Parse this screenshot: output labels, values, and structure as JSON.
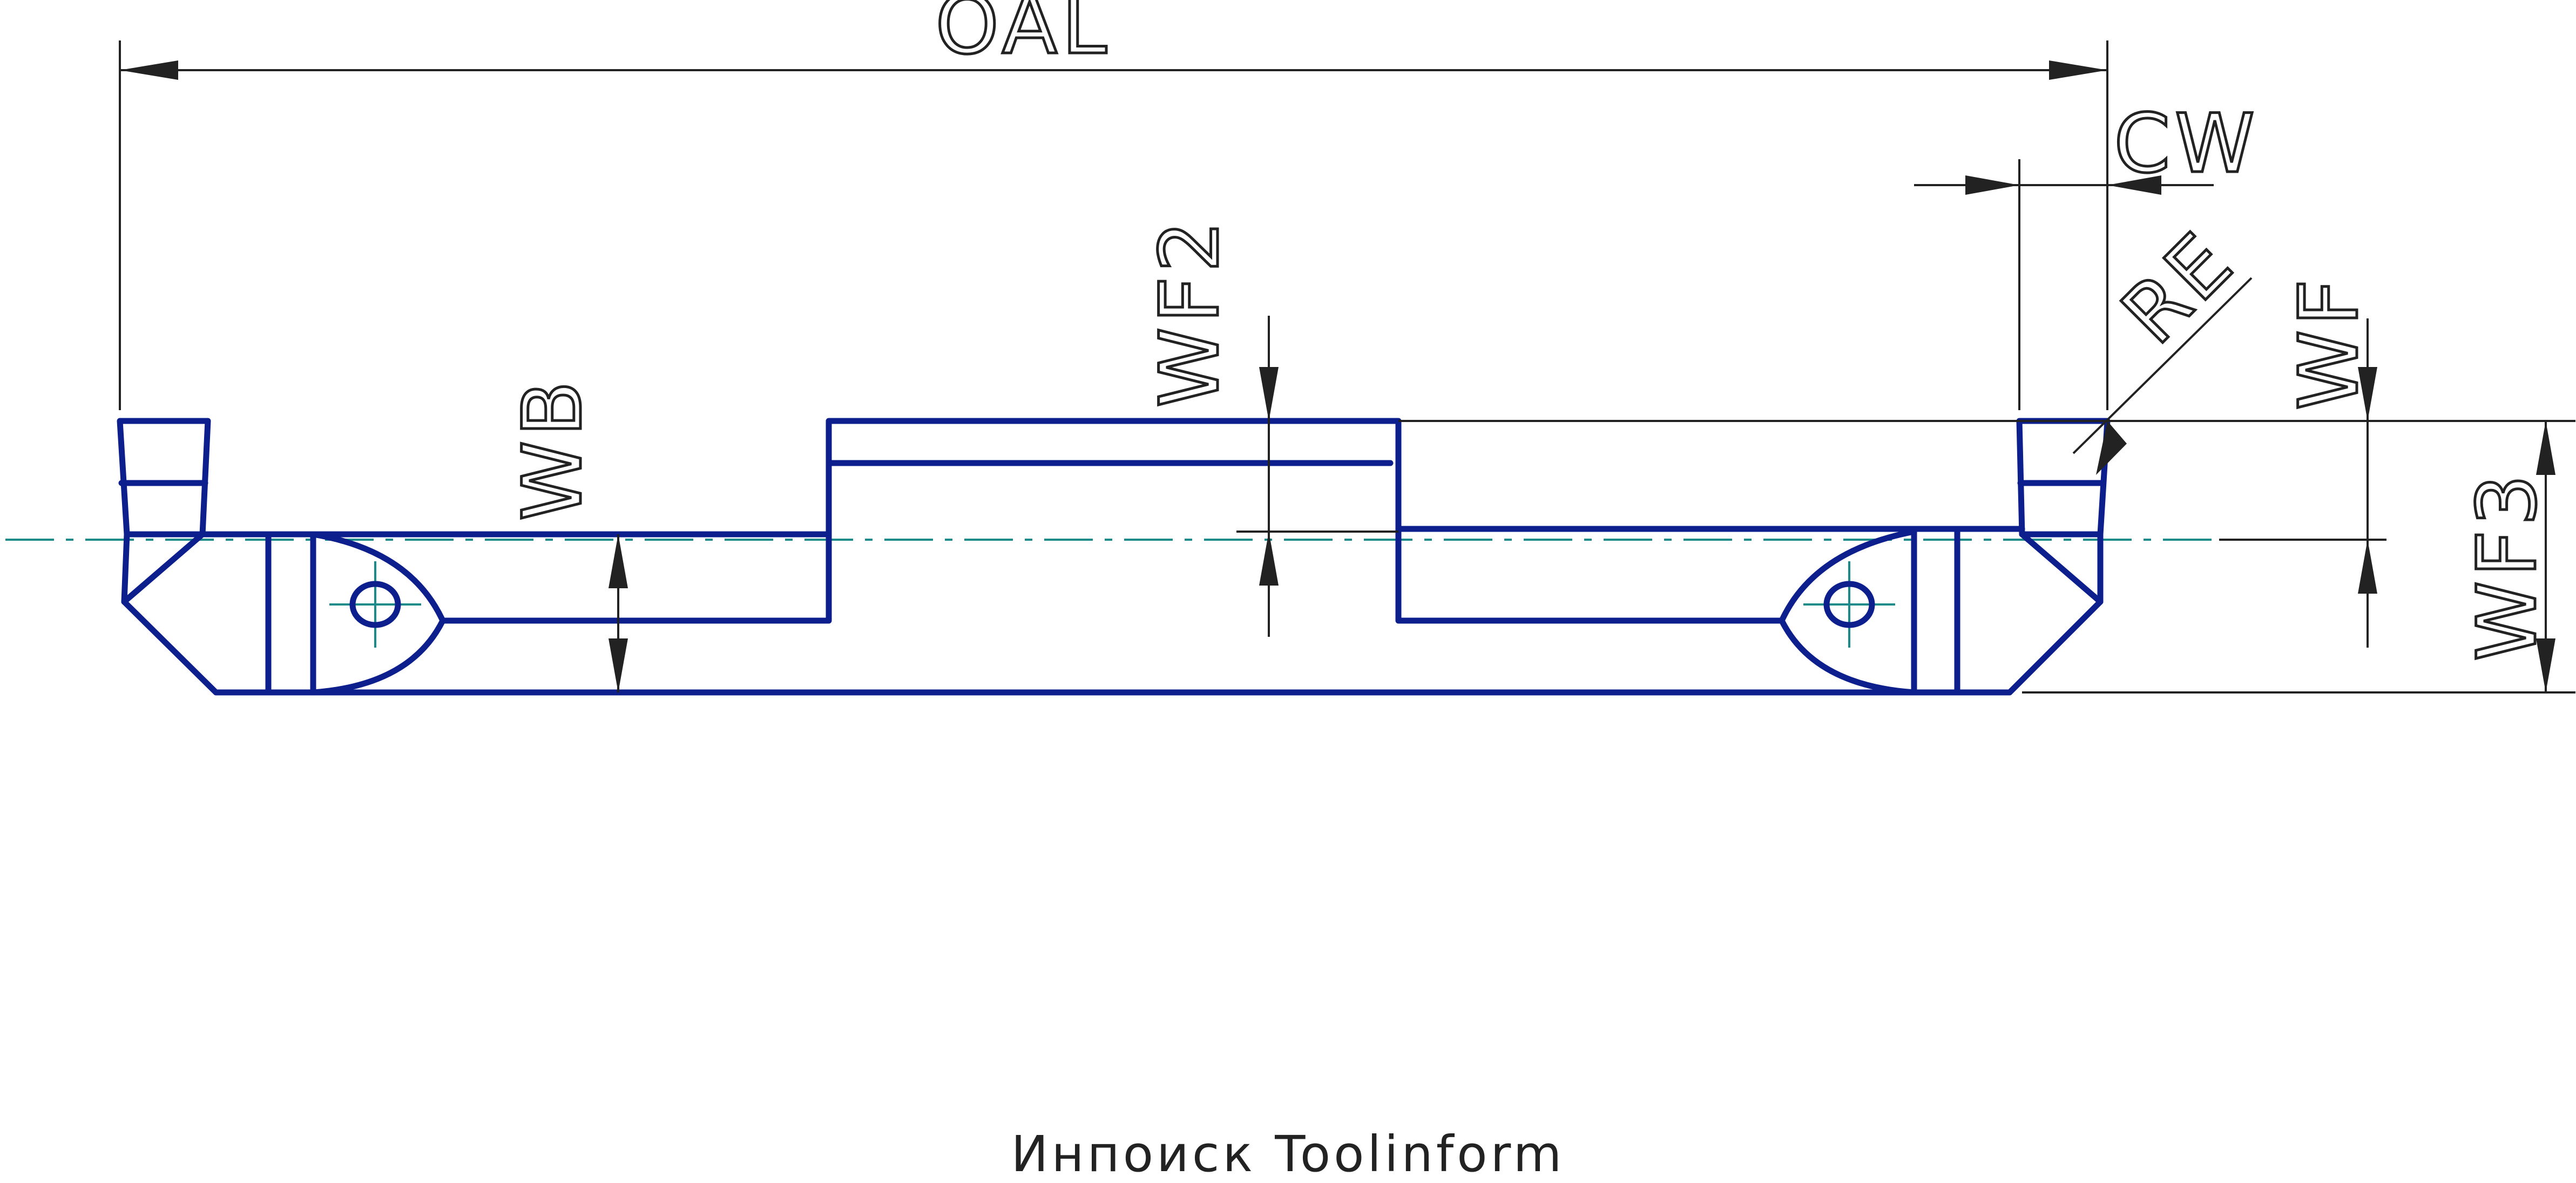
{
  "labels": {
    "oal": "OAL",
    "cw": "CW",
    "re": "RE",
    "wf": "WF",
    "wf2": "WF2",
    "wf3": "WF3",
    "wb": "WB"
  },
  "caption": "Инпоиск Toolinform",
  "colors": {
    "part_outline": "#0d1f8c",
    "dimension_lines": "#222222",
    "center_lines": "#1a8a8a"
  }
}
